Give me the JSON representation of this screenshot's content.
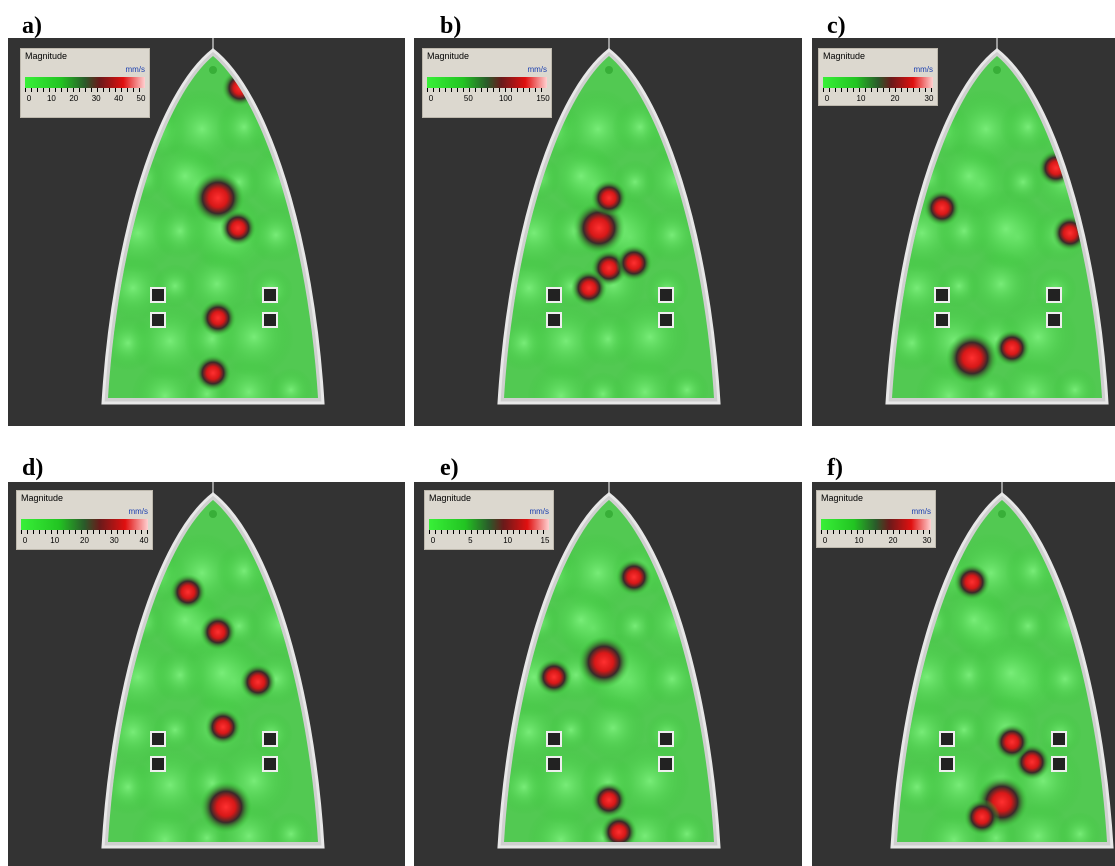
{
  "figure": {
    "panels": [
      {
        "id": "a",
        "label": "a)",
        "legend_title": "Magnitude",
        "unit": "mm/s",
        "ticks": [
          "0",
          "10",
          "20",
          "30",
          "40",
          "50"
        ]
      },
      {
        "id": "b",
        "label": "b)",
        "legend_title": "Magnitude",
        "unit": "mm/s",
        "ticks": [
          "0",
          "50",
          "100",
          "150"
        ]
      },
      {
        "id": "c",
        "label": "c)",
        "legend_title": "Magnitude",
        "unit": "mm/s",
        "ticks": [
          "0",
          "10",
          "20",
          "30"
        ]
      },
      {
        "id": "d",
        "label": "d)",
        "legend_title": "Magnitude",
        "unit": "mm/s",
        "ticks": [
          "0",
          "10",
          "20",
          "30",
          "40"
        ]
      },
      {
        "id": "e",
        "label": "e)",
        "legend_title": "Magnitude",
        "unit": "mm/s",
        "ticks": [
          "0",
          "5",
          "10",
          "15"
        ]
      },
      {
        "id": "f",
        "label": "f)",
        "legend_title": "Magnitude",
        "unit": "mm/s",
        "ticks": [
          "0",
          "10",
          "20",
          "30"
        ]
      }
    ],
    "colors": {
      "background": "#333333",
      "soleplate": "#cfcfcf",
      "low": "#38f038",
      "mid": "#2a3a2a",
      "high": "#e01010"
    }
  }
}
